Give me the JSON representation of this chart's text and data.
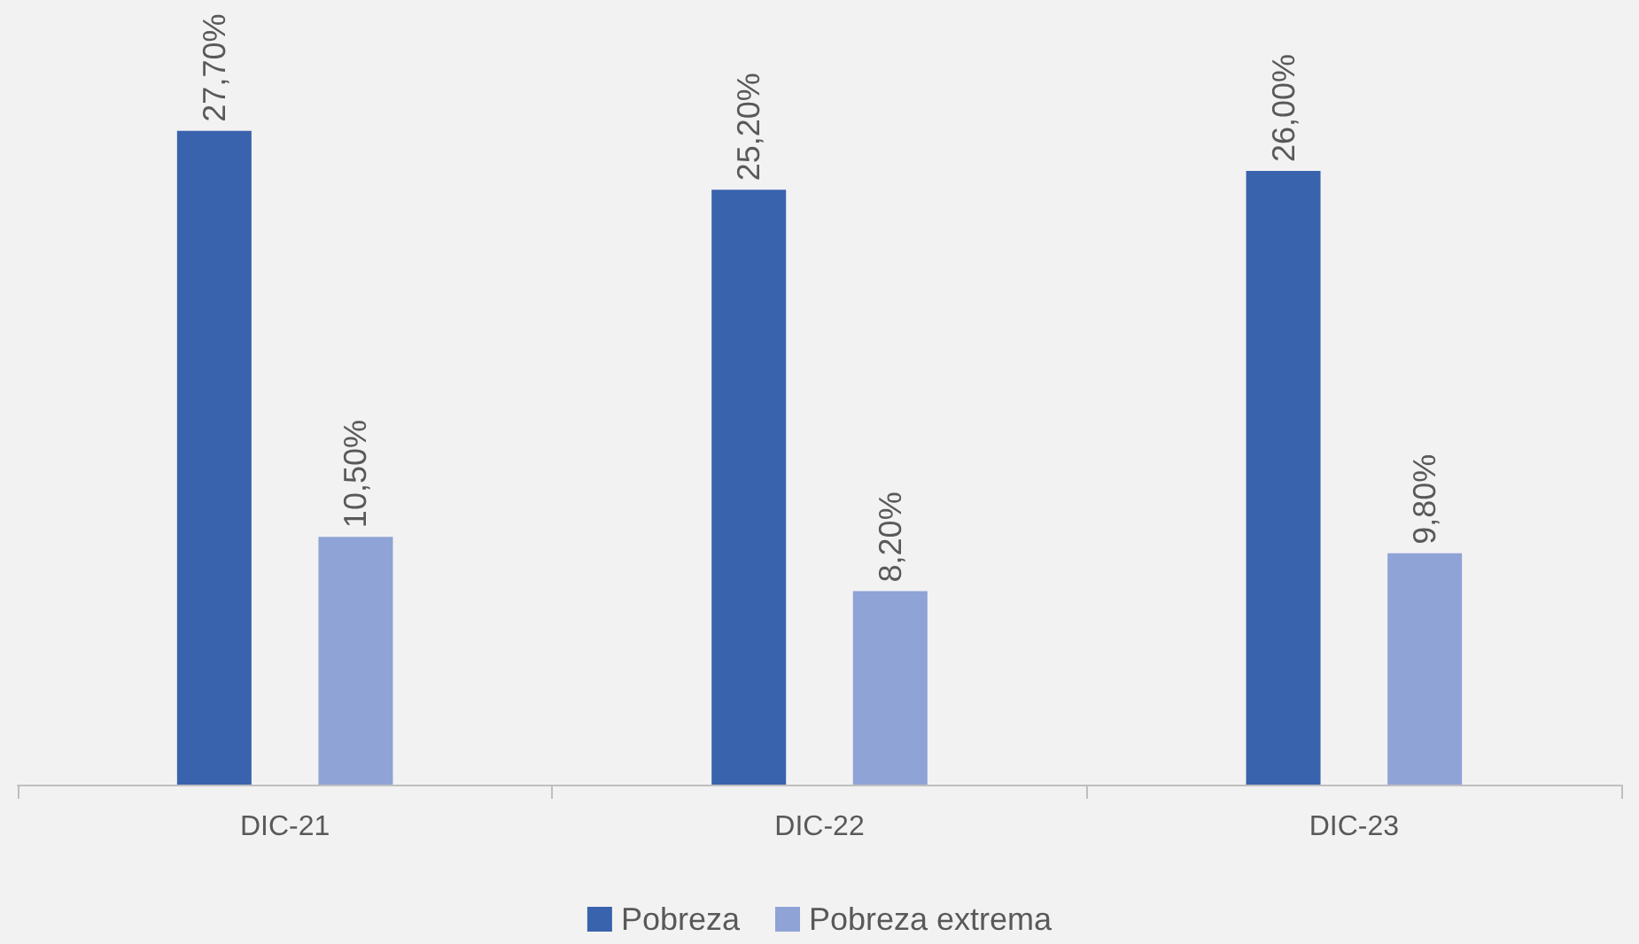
{
  "chart_data": {
    "type": "bar",
    "categories": [
      "DIC-21",
      "DIC-22",
      "DIC-23"
    ],
    "series": [
      {
        "name": "Pobreza",
        "color": "#3a63ad",
        "values": [
          27.7,
          25.2,
          26.0
        ],
        "value_labels": [
          "27,70%",
          "25,20%",
          "26,00%"
        ]
      },
      {
        "name": "Pobreza extrema",
        "color": "#8fa3d6",
        "values": [
          10.5,
          8.2,
          9.8
        ],
        "value_labels": [
          "10,50%",
          "8,20%",
          "9,80%"
        ]
      }
    ],
    "tick_labels": "x",
    "grid": false,
    "legend": "bottom"
  }
}
